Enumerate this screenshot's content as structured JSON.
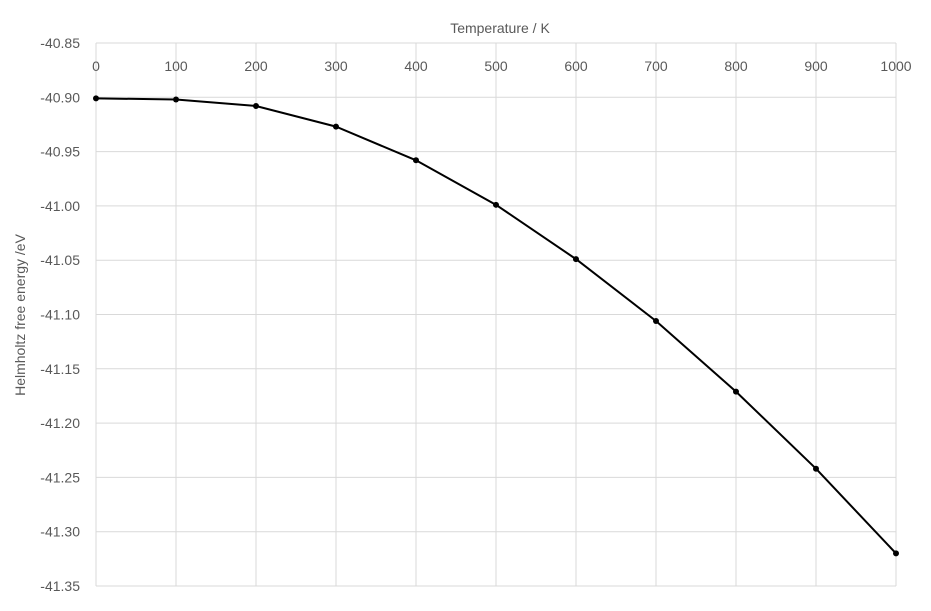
{
  "chart_data": {
    "type": "line",
    "title": "",
    "xlabel": "Temperature / K",
    "ylabel": "Helmholtz free energy /eV",
    "xlim": [
      0,
      1000
    ],
    "ylim": [
      -41.35,
      -40.85
    ],
    "x_axis_position": "top",
    "x_ticks": [
      0,
      100,
      200,
      300,
      400,
      500,
      600,
      700,
      800,
      900,
      1000
    ],
    "y_ticks": [
      -40.85,
      -40.9,
      -40.95,
      -41.0,
      -41.05,
      -41.1,
      -41.15,
      -41.2,
      -41.25,
      -41.3,
      -41.35
    ],
    "y_tick_labels": [
      "-40.85",
      "-40.90",
      "-40.95",
      "-41.00",
      "-41.05",
      "-41.10",
      "-41.15",
      "-41.20",
      "-41.25",
      "-41.30",
      "-41.35"
    ],
    "grid": true,
    "legend": "none",
    "series": [
      {
        "color": "#000000",
        "marker": "circle",
        "x": [
          0,
          100,
          200,
          300,
          400,
          500,
          600,
          700,
          800,
          900,
          1000
        ],
        "y": [
          -40.901,
          -40.902,
          -40.908,
          -40.927,
          -40.958,
          -40.999,
          -41.049,
          -41.106,
          -41.171,
          -41.242,
          -41.32
        ]
      }
    ]
  }
}
